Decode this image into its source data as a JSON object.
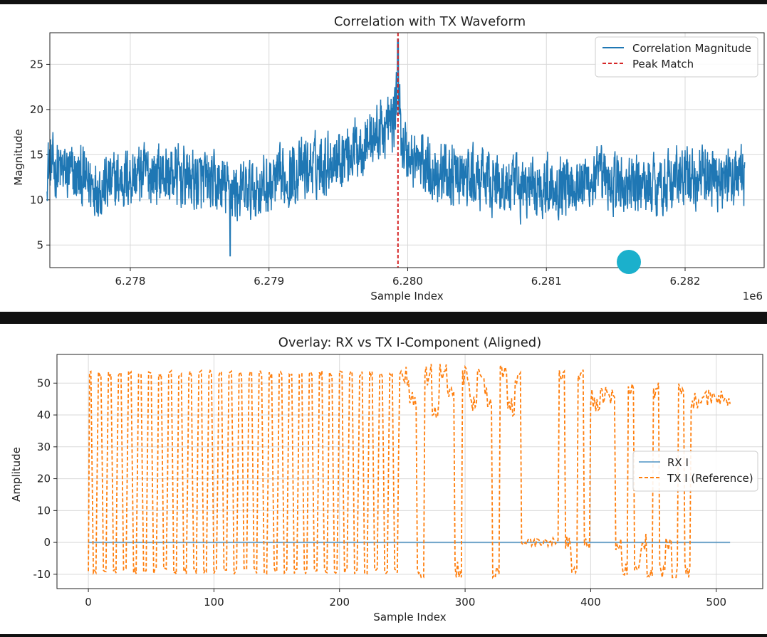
{
  "chart_data": [
    {
      "type": "line",
      "title": "Correlation with TX Waveform",
      "xlabel": "Sample Index",
      "ylabel": "Magnitude",
      "x_offset_label": "1e6",
      "xlim": [
        6.27742,
        6.28257
      ],
      "ylim": [
        2.5,
        28.5
      ],
      "xticks": [
        6.278,
        6.279,
        6.28,
        6.281,
        6.282
      ],
      "xtick_labels": [
        "6.278",
        "6.279",
        "6.280",
        "6.281",
        "6.282"
      ],
      "yticks": [
        5,
        10,
        15,
        20,
        25
      ],
      "grid": true,
      "legend_position": "upper right",
      "series": [
        {
          "name": "Correlation Magnitude",
          "color": "#1f77b4",
          "x_start": 6.2774,
          "x_end": 6.28243,
          "trend": [
            [
              6.2774,
              13.8
            ],
            [
              6.2776,
              12.6
            ],
            [
              6.2778,
              11.4
            ],
            [
              6.278,
              12.6
            ],
            [
              6.2782,
              13.0
            ],
            [
              6.2784,
              12.4
            ],
            [
              6.2786,
              11.6
            ],
            [
              6.2788,
              10.8
            ],
            [
              6.279,
              11.5
            ],
            [
              6.2792,
              13.0
            ],
            [
              6.2794,
              14.2
            ],
            [
              6.2796,
              15.5
            ],
            [
              6.2798,
              17.5
            ],
            [
              6.2799,
              18.8
            ],
            [
              6.27993,
              24.0
            ],
            [
              6.27995,
              17.2
            ],
            [
              6.28,
              14.8
            ],
            [
              6.2802,
              13.2
            ],
            [
              6.2804,
              12.4
            ],
            [
              6.2806,
              12.0
            ],
            [
              6.2808,
              11.2
            ],
            [
              6.281,
              11.6
            ],
            [
              6.2812,
              12.0
            ],
            [
              6.2814,
              12.2
            ],
            [
              6.2816,
              11.4
            ],
            [
              6.2818,
              11.8
            ],
            [
              6.282,
              12.4
            ],
            [
              6.2822,
              12.6
            ],
            [
              6.28243,
              12.4
            ]
          ],
          "peak": {
            "x": 6.27993,
            "y": 27.8
          },
          "min": {
            "x": 6.27872,
            "y": 3.8
          }
        },
        {
          "name": "Peak Match",
          "color": "#d62728",
          "style": "dashed",
          "x": 6.27993
        }
      ]
    },
    {
      "type": "line",
      "title": "Overlay: RX vs TX I-Component (Aligned)",
      "xlabel": "Sample Index",
      "ylabel": "Amplitude",
      "xlim": [
        -25,
        537
      ],
      "ylim": [
        -14.5,
        59
      ],
      "xticks": [
        0,
        100,
        200,
        300,
        400,
        500
      ],
      "yticks": [
        -10,
        0,
        10,
        20,
        30,
        40,
        50
      ],
      "grid": true,
      "legend_position": "center right",
      "series": [
        {
          "name": "RX I",
          "color": "#1f77b4",
          "x": [
            0,
            511
          ],
          "values": [
            0,
            0
          ]
        },
        {
          "name": "TX I (Reference)",
          "color": "#ff7f0e",
          "style": "dashed",
          "x_range": [
            0,
            511
          ],
          "high": 53,
          "low": -9,
          "segments": [
            {
              "from": 0,
              "to": 250,
              "pattern": "alternating",
              "period": 8
            },
            {
              "from": 250,
              "to": 345,
              "pattern": "irregular"
            },
            {
              "from": 345,
              "to": 375,
              "pattern": "near-zero"
            },
            {
              "from": 375,
              "to": 400,
              "pattern": "irregular"
            },
            {
              "from": 400,
              "to": 420,
              "pattern": "near-45"
            },
            {
              "from": 420,
              "to": 480,
              "pattern": "irregular"
            },
            {
              "from": 480,
              "to": 511,
              "pattern": "near-45"
            }
          ]
        }
      ]
    }
  ]
}
